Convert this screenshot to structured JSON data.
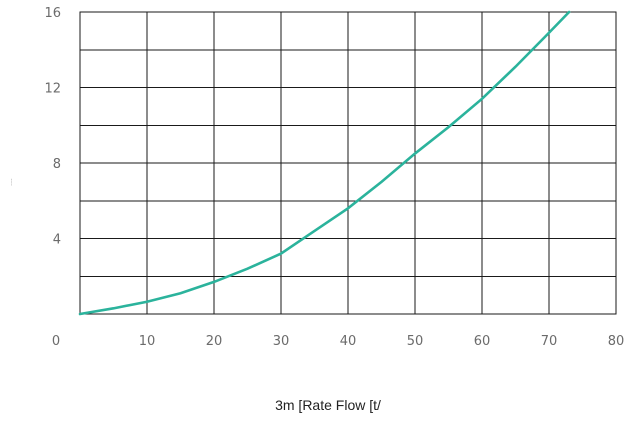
{
  "chart_data": {
    "type": "line",
    "title": "",
    "xlabel": "3m [Rate Flow [t/",
    "ylabel": "....",
    "xlim": [
      0,
      80
    ],
    "ylim": [
      0,
      16
    ],
    "x_ticks": [
      "0",
      "10",
      "20",
      "30",
      "40",
      "50",
      "60",
      "70",
      "80"
    ],
    "y_ticks": [
      "4",
      "8",
      "12",
      "16"
    ],
    "x_grid_step": 10,
    "y_grid_step": 2,
    "grid": true,
    "line_color": "#2bb39c",
    "series": [
      {
        "x": [
          0,
          5,
          10,
          15,
          20,
          25,
          30,
          35,
          40,
          45,
          50,
          55,
          60,
          65,
          70,
          73
        ],
        "values": [
          0,
          0.3,
          0.65,
          1.1,
          1.7,
          2.4,
          3.2,
          4.4,
          5.6,
          7.0,
          8.5,
          9.9,
          11.4,
          13.1,
          14.9,
          16
        ]
      }
    ]
  }
}
